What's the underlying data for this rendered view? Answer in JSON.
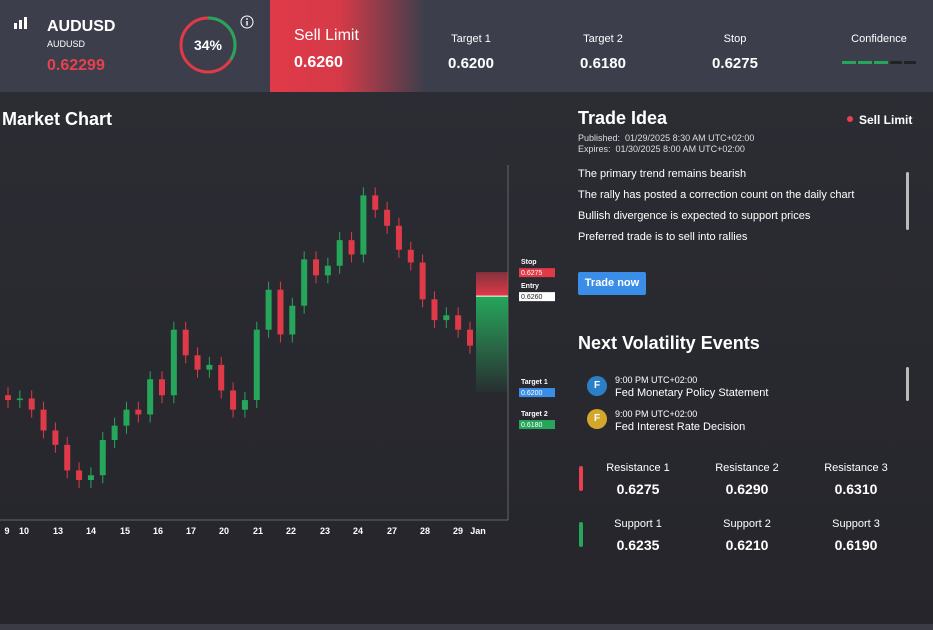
{
  "header": {
    "symbol": "AUDUSD",
    "symbol_sub": "AUDUSD",
    "price": "0.62299",
    "gauge": {
      "value": 34,
      "label": "34%"
    },
    "order_type": "Sell Limit",
    "entry": "0.6260",
    "columns": [
      {
        "label": "Target 1",
        "value": "0.6200"
      },
      {
        "label": "Target 2",
        "value": "0.6180"
      },
      {
        "label": "Stop",
        "value": "0.6275"
      },
      {
        "label": "Confidence"
      }
    ]
  },
  "market_chart": {
    "title": "Market Chart",
    "type": "candlestick",
    "up_color": "#26a65b",
    "down_color": "#e03a48",
    "x_labels": [
      "9",
      "10",
      "13",
      "14",
      "15",
      "16",
      "17",
      "20",
      "21",
      "22",
      "23",
      "24",
      "27",
      "28",
      "29",
      "Jan"
    ],
    "open": [
      0.6198,
      0.6195,
      0.6196,
      0.6189,
      0.6176,
      0.6167,
      0.6151,
      0.6145,
      0.6148,
      0.617,
      0.6179,
      0.6189,
      0.6186,
      0.6208,
      0.6198,
      0.6239,
      0.6223,
      0.6214,
      0.6217,
      0.6201,
      0.6189,
      0.6195,
      0.6239,
      0.6264,
      0.6236,
      0.6254,
      0.6283,
      0.6273,
      0.6279,
      0.6295,
      0.6286,
      0.6323,
      0.6314,
      0.6304,
      0.6289,
      0.6281,
      0.6258,
      0.6245,
      0.6248,
      0.6239
    ],
    "high": [
      0.6203,
      0.6201,
      0.6201,
      0.6194,
      0.6181,
      0.6172,
      0.6156,
      0.6153,
      0.6175,
      0.6184,
      0.6194,
      0.6194,
      0.6213,
      0.6213,
      0.6244,
      0.6244,
      0.6228,
      0.6222,
      0.6222,
      0.6206,
      0.62,
      0.6244,
      0.6269,
      0.6269,
      0.6259,
      0.6288,
      0.6288,
      0.6284,
      0.63,
      0.63,
      0.6328,
      0.6328,
      0.6319,
      0.6309,
      0.6294,
      0.6286,
      0.6263,
      0.6253,
      0.6253,
      0.6244
    ],
    "low": [
      0.619,
      0.619,
      0.6184,
      0.6171,
      0.6162,
      0.6146,
      0.614,
      0.614,
      0.6143,
      0.6165,
      0.6174,
      0.6181,
      0.6181,
      0.6193,
      0.6193,
      0.6218,
      0.6209,
      0.6209,
      0.6196,
      0.6184,
      0.6184,
      0.619,
      0.6234,
      0.6231,
      0.6231,
      0.6249,
      0.6268,
      0.6268,
      0.6274,
      0.6281,
      0.6281,
      0.6309,
      0.6299,
      0.6284,
      0.6276,
      0.6253,
      0.624,
      0.624,
      0.6234,
      0.6224
    ],
    "close": [
      0.6195,
      0.6196,
      0.6189,
      0.6176,
      0.6167,
      0.6151,
      0.6145,
      0.6148,
      0.617,
      0.6179,
      0.6189,
      0.6186,
      0.6208,
      0.6198,
      0.6239,
      0.6223,
      0.6214,
      0.6217,
      0.6201,
      0.6189,
      0.6195,
      0.6239,
      0.6264,
      0.6236,
      0.6254,
      0.6283,
      0.6273,
      0.6279,
      0.6295,
      0.6286,
      0.6323,
      0.6314,
      0.6304,
      0.6289,
      0.6281,
      0.6258,
      0.6245,
      0.6248,
      0.6239,
      0.6229
    ],
    "ylim": [
      0.612,
      0.6342
    ],
    "levels": [
      {
        "name": "Stop",
        "value": 0.6275,
        "label": "0.6275",
        "color": "#e03a48"
      },
      {
        "name": "Entry",
        "value": 0.626,
        "label": "0.6260",
        "color": "#ffffff"
      },
      {
        "name": "Target 1",
        "value": 0.62,
        "label": "0.6200",
        "color": "#3b8ee8"
      },
      {
        "name": "Target 2",
        "value": 0.618,
        "label": "0.6180",
        "color": "#26a65b"
      }
    ]
  },
  "trade_idea": {
    "title": "Trade Idea",
    "badge": "Sell Limit",
    "published": "Published:  01/29/2025 8:30 AM UTC+02:00",
    "expires": "Expires:  01/30/2025 8:00 AM UTC+02:00",
    "points": [
      "The primary trend remains bearish",
      "The rally has posted a correction count on the daily chart",
      "Bullish divergence is expected to support prices",
      "Preferred trade is to sell into rallies"
    ],
    "button": "Trade now"
  },
  "volatility": {
    "title": "Next Volatility Events",
    "events": [
      {
        "icon": "F",
        "time": "9:00 PM UTC+02:00",
        "name": "Fed Monetary Policy Statement"
      },
      {
        "icon": "F",
        "time": "9:00 PM UTC+02:00",
        "name": "Fed Interest Rate Decision"
      }
    ]
  },
  "levels": {
    "resistance": [
      {
        "label": "Resistance 1",
        "value": "0.6275"
      },
      {
        "label": "Resistance 2",
        "value": "0.6290"
      },
      {
        "label": "Resistance 3",
        "value": "0.6310"
      }
    ],
    "support": [
      {
        "label": "Support 1",
        "value": "0.6235"
      },
      {
        "label": "Support 2",
        "value": "0.6210"
      },
      {
        "label": "Support 3",
        "value": "0.6190"
      }
    ]
  }
}
